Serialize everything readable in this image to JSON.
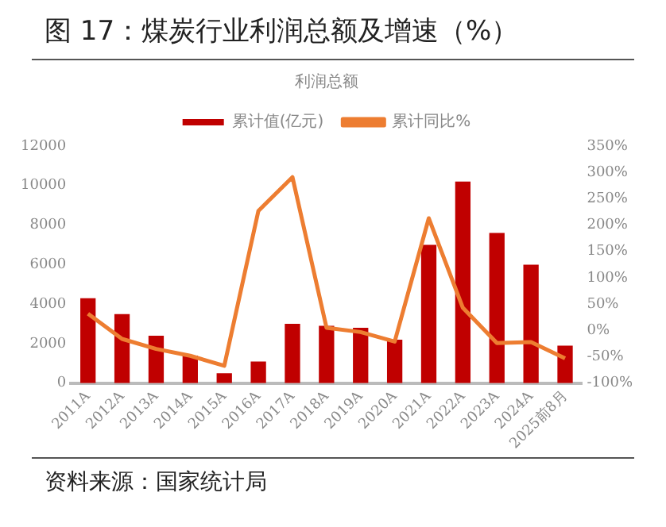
{
  "chart_data": {
    "type": "bar",
    "title": "图 17：煤炭行业利润总额及增速（%）",
    "subtitle": "利润总额",
    "annotations": [
      "资料来源：国家统计局"
    ],
    "categories": [
      "2011A",
      "2012A",
      "2013A",
      "2014A",
      "2015A",
      "2016A",
      "2017A",
      "2018A",
      "2019A",
      "2020A",
      "2021A",
      "2022A",
      "2023A",
      "2024A",
      "2025前8月"
    ],
    "series": [
      {
        "name": "累计值(亿元)",
        "color": "#c00000",
        "values": [
          4300,
          3500,
          2400,
          1400,
          500,
          1100,
          3000,
          2900,
          2800,
          2200,
          7000,
          10200,
          7600,
          6000,
          1900
        ]
      },
      {
        "name": "累计同比%",
        "type": "line",
        "axis": "y2",
        "color": "#ed7d31",
        "values": [
          32,
          -16,
          -35,
          -48,
          -67,
          227,
          291,
          5,
          -3,
          -21,
          213,
          43,
          -24,
          -22,
          -53
        ]
      }
    ],
    "ylim": [
      0,
      12000
    ],
    "yticks": [
      0,
      2000,
      4000,
      6000,
      8000,
      10000,
      12000
    ],
    "y2lim": [
      -100,
      350
    ],
    "y2ticks": [
      {
        "value": -100,
        "label": "-100%"
      },
      {
        "value": -50,
        "label": "-50%"
      },
      {
        "value": 0,
        "label": "0%"
      },
      {
        "value": 50,
        "label": "50%"
      },
      {
        "value": 100,
        "label": "100%"
      },
      {
        "value": 150,
        "label": "150%"
      },
      {
        "value": 200,
        "label": "200%"
      },
      {
        "value": 250,
        "label": "250%"
      },
      {
        "value": 300,
        "label": "300%"
      },
      {
        "value": 350,
        "label": "350%"
      }
    ],
    "grid": false,
    "legend": "top",
    "marker": "none",
    "line_style": "solid"
  }
}
